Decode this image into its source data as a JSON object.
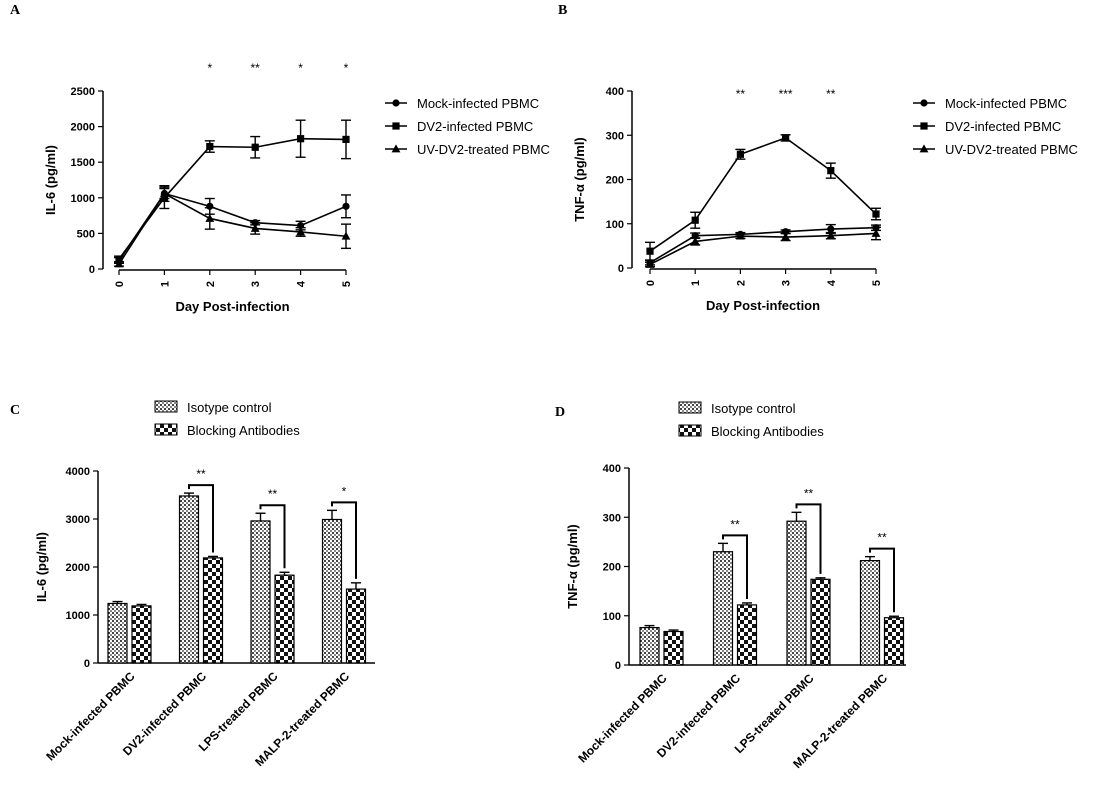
{
  "chart_data": [
    {
      "panel": "A",
      "type": "line",
      "xlabel": "Day Post-infection",
      "ylabel": "IL-6 (pg/ml)",
      "xlim": [
        0,
        5
      ],
      "ylim": [
        0,
        2500
      ],
      "x_ticks": [
        "0",
        "1",
        "2",
        "3",
        "4",
        "5"
      ],
      "y_ticks": [
        "0",
        "500",
        "1000",
        "1500",
        "2000",
        "2500"
      ],
      "x": [
        0,
        1,
        2,
        3,
        4,
        5
      ],
      "series": [
        {
          "name": "Mock-infected PBMC",
          "marker": "circle",
          "values": [
            120,
            1060,
            880,
            650,
            610,
            880
          ],
          "errors": [
            40,
            110,
            110,
            30,
            60,
            160
          ]
        },
        {
          "name": "DV2-infected PBMC",
          "marker": "square",
          "values": [
            140,
            1000,
            1720,
            1710,
            1830,
            1820
          ],
          "errors": [
            40,
            150,
            80,
            150,
            260,
            270
          ]
        },
        {
          "name": "UV-DV2-treated PBMC",
          "marker": "triangle",
          "values": [
            70,
            1060,
            710,
            570,
            520,
            460
          ],
          "errors": [
            30,
            70,
            150,
            80,
            60,
            170
          ]
        }
      ],
      "significance": [
        {
          "x": 2,
          "label": "*"
        },
        {
          "x": 3,
          "label": "**"
        },
        {
          "x": 4,
          "label": "*"
        },
        {
          "x": 5,
          "label": "*"
        }
      ],
      "legend": "right"
    },
    {
      "panel": "B",
      "type": "line",
      "xlabel": "Day Post-infection",
      "ylabel": "TNF-α (pg/ml)",
      "xlim": [
        0,
        5
      ],
      "ylim": [
        0,
        400
      ],
      "x_ticks": [
        "0",
        "1",
        "2",
        "3",
        "4",
        "5"
      ],
      "y_ticks": [
        "0",
        "100",
        "200",
        "300",
        "400"
      ],
      "x": [
        0,
        1,
        2,
        3,
        4,
        5
      ],
      "series": [
        {
          "name": "Mock-infected PBMC",
          "marker": "circle",
          "values": [
            12,
            73,
            76,
            82,
            88,
            91
          ],
          "errors": [
            5,
            6,
            4,
            4,
            10,
            6
          ]
        },
        {
          "name": "DV2-infected PBMC",
          "marker": "square",
          "values": [
            38,
            108,
            257,
            294,
            220,
            122
          ],
          "errors": [
            20,
            18,
            11,
            7,
            17,
            13
          ]
        },
        {
          "name": "UV-DV2-treated PBMC",
          "marker": "triangle",
          "values": [
            8,
            60,
            72,
            70,
            73,
            78
          ],
          "errors": [
            5,
            8,
            5,
            8,
            7,
            14
          ]
        }
      ],
      "significance": [
        {
          "x": 2,
          "label": "**"
        },
        {
          "x": 3,
          "label": "***"
        },
        {
          "x": 4,
          "label": "**"
        }
      ],
      "legend": "right"
    },
    {
      "panel": "C",
      "type": "bar",
      "ylabel": "IL-6 (pg/ml)",
      "ylim": [
        0,
        4000
      ],
      "y_ticks": [
        "0",
        "1000",
        "2000",
        "3000",
        "4000"
      ],
      "categories": [
        "Mock-infected PBMC",
        "DV2-infected PBMC",
        "LPS-treated PBMC",
        "MALP-2-treated PBMC"
      ],
      "series": [
        {
          "name": "Isotype control",
          "values": [
            1240,
            3480,
            2960,
            2990
          ],
          "errors": [
            40,
            60,
            160,
            190
          ]
        },
        {
          "name": "Blocking Antibodies",
          "values": [
            1190,
            2190,
            1830,
            1540
          ],
          "errors": [
            30,
            30,
            60,
            130
          ]
        }
      ],
      "significance": [
        {
          "category": 1,
          "label": "**"
        },
        {
          "category": 2,
          "label": "**"
        },
        {
          "category": 3,
          "label": "*"
        }
      ],
      "legend": "top"
    },
    {
      "panel": "D",
      "type": "bar",
      "ylabel": "TNF-α (pg/ml)",
      "ylim": [
        0,
        400
      ],
      "y_ticks": [
        "0",
        "100",
        "200",
        "300",
        "400"
      ],
      "categories": [
        "Mock-infected PBMC",
        "DV2-infected PBMC",
        "LPS-treated PBMC",
        "MALP-2-treated PBMC"
      ],
      "series": [
        {
          "name": "Isotype control",
          "values": [
            76,
            230,
            292,
            212
          ],
          "errors": [
            4,
            17,
            18,
            8
          ]
        },
        {
          "name": "Blocking Antibodies",
          "values": [
            68,
            122,
            174,
            96
          ],
          "errors": [
            3,
            4,
            3,
            3
          ]
        }
      ],
      "significance": [
        {
          "category": 1,
          "label": "**"
        },
        {
          "category": 2,
          "label": "**"
        },
        {
          "category": 3,
          "label": "**"
        }
      ],
      "legend": "top"
    }
  ],
  "panel_labels": [
    "A",
    "B",
    "C",
    "D"
  ]
}
